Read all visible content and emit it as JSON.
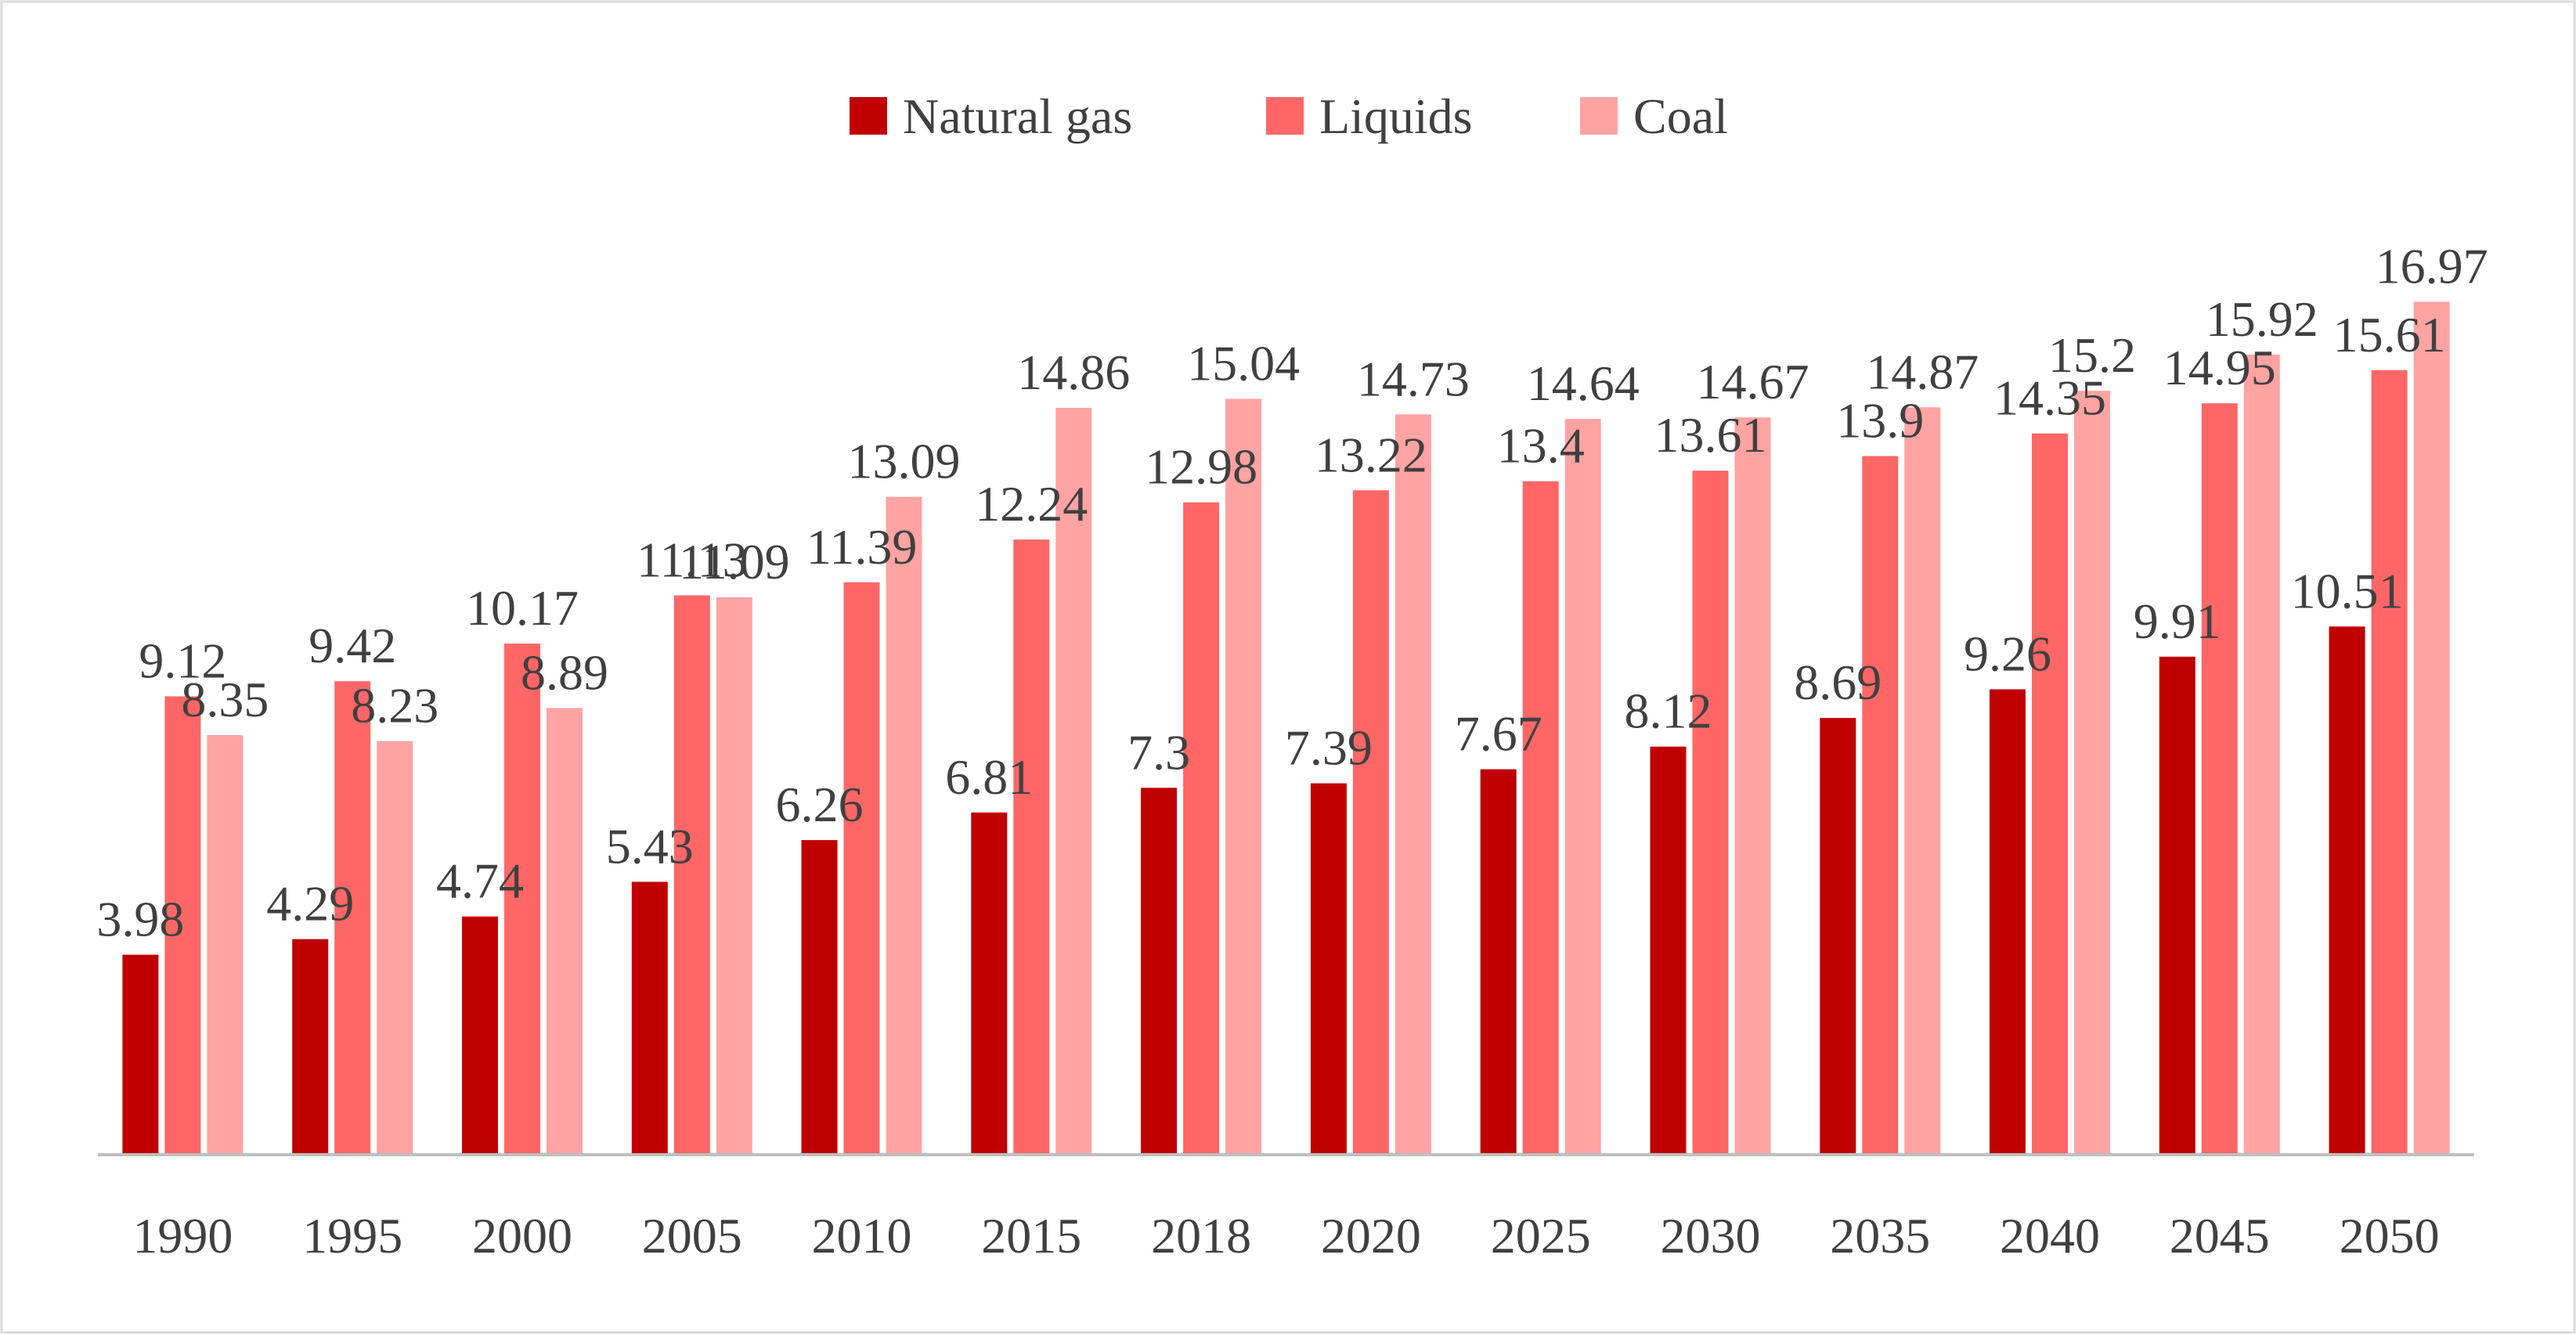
{
  "chart_data": {
    "type": "bar",
    "title": "",
    "xlabel": "",
    "ylabel": "",
    "ylim": [
      0,
      17.5
    ],
    "grid": false,
    "legend_position": "top-center",
    "categories": [
      "1990",
      "1995",
      "2000",
      "2005",
      "2010",
      "2015",
      "2018",
      "2020",
      "2025",
      "2030",
      "2035",
      "2040",
      "2045",
      "2050"
    ],
    "series": [
      {
        "name": "Natural gas",
        "color": "#C00000",
        "values": [
          3.98,
          4.29,
          4.74,
          5.43,
          6.26,
          6.81,
          7.3,
          7.39,
          7.67,
          8.12,
          8.69,
          9.26,
          9.91,
          10.51
        ]
      },
      {
        "name": "Liquids",
        "color": "#FF6666",
        "values": [
          9.12,
          9.42,
          10.17,
          11.13,
          11.39,
          12.24,
          12.98,
          13.22,
          13.4,
          13.61,
          13.9,
          14.35,
          14.95,
          15.61
        ]
      },
      {
        "name": "Coal",
        "color": "#FFA3A3",
        "values": [
          8.35,
          8.23,
          8.89,
          11.09,
          13.09,
          14.86,
          15.04,
          14.73,
          14.64,
          14.67,
          14.87,
          15.2,
          15.92,
          16.97
        ]
      }
    ]
  }
}
